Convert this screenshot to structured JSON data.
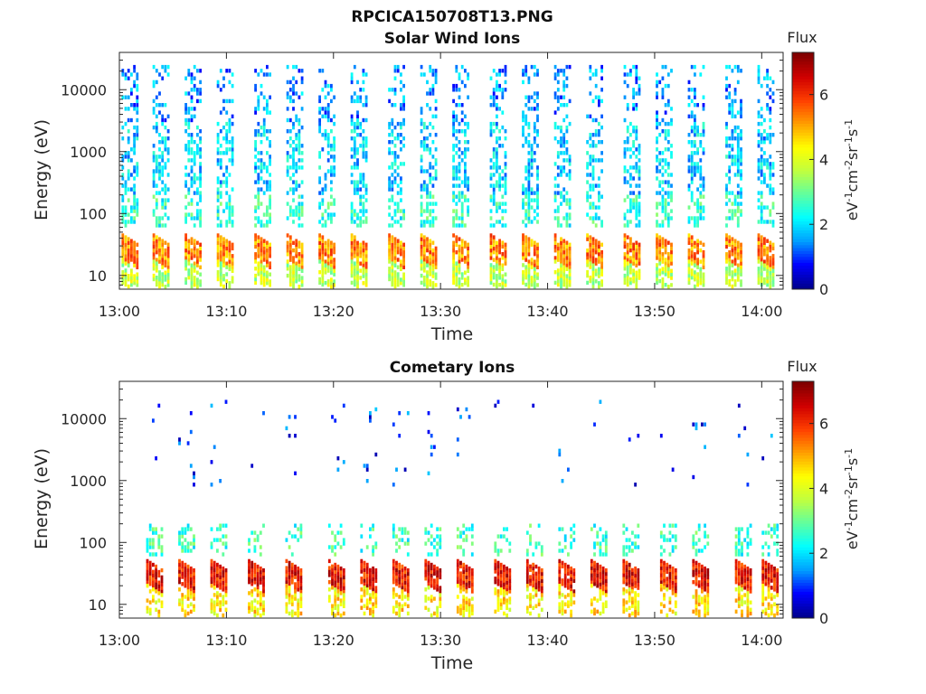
{
  "figure": {
    "title": "RPCICA150708T13.PNG"
  },
  "colorbar": {
    "label_parts": [
      "eV",
      "-1",
      "cm",
      "-2",
      "sr",
      "-1",
      "s",
      "-1"
    ],
    "colors": [
      "#00008f",
      "#0000ff",
      "#00a0ff",
      "#00ffff",
      "#60ff9f",
      "#c0ff3f",
      "#ffff00",
      "#ffa000",
      "#ff4000",
      "#d00000",
      "#800000"
    ]
  },
  "chart_data": [
    {
      "type": "heatmap",
      "title": "Solar Wind Ions",
      "xlabel": "Time",
      "ylabel": "Energy (eV)",
      "y_scale": "log",
      "ylim": [
        6,
        40000
      ],
      "x_range": [
        "13:00",
        "14:02"
      ],
      "x_ticks": [
        "13:00",
        "13:10",
        "13:20",
        "13:30",
        "13:40",
        "13:50",
        "14:00"
      ],
      "y_ticks": [
        "10",
        "100",
        "1000",
        "10000"
      ],
      "colorbar": {
        "title": "Flux",
        "ticks": [
          "0",
          "2",
          "4",
          "6"
        ],
        "range": [
          0,
          7.3
        ]
      },
      "sweep_start_minutes": [
        0.2,
        3.1,
        6.1,
        9.1,
        12.6,
        15.6,
        18.6,
        21.6,
        25.1,
        28.1,
        31.1,
        34.6,
        37.6,
        40.6,
        43.6,
        47.1,
        50.1,
        53.1,
        56.6,
        59.6
      ],
      "bands": [
        {
          "emin": 3000,
          "emax": 25000,
          "flux": 1.5,
          "occupancy": 0.3
        },
        {
          "emin": 200,
          "emax": 3000,
          "flux": 1.9,
          "occupancy": 0.45
        },
        {
          "emin": 60,
          "emax": 200,
          "flux": 2.5,
          "occupancy": 0.5
        },
        {
          "emin": 15,
          "emax": 40,
          "flux": 5.3,
          "occupancy": 0.9
        },
        {
          "emin": 6,
          "emax": 15,
          "flux": 3.7,
          "occupancy": 0.75
        }
      ]
    },
    {
      "type": "heatmap",
      "title": "Cometary Ions",
      "xlabel": "Time",
      "ylabel": "Energy (eV)",
      "y_scale": "log",
      "ylim": [
        6,
        40000
      ],
      "x_range": [
        "13:00",
        "14:02"
      ],
      "x_ticks": [
        "13:00",
        "13:10",
        "13:20",
        "13:30",
        "13:40",
        "13:50",
        "14:00"
      ],
      "y_ticks": [
        "10",
        "100",
        "1000",
        "10000"
      ],
      "colorbar": {
        "title": "Flux",
        "ticks": [
          "0",
          "2",
          "4",
          "6"
        ],
        "range": [
          0,
          7.3
        ]
      },
      "sweep_start_minutes": [
        2.5,
        5.5,
        8.5,
        12.0,
        15.5,
        19.5,
        22.5,
        25.5,
        28.5,
        31.5,
        35.0,
        38.0,
        41.0,
        44.0,
        47.0,
        50.5,
        53.5,
        57.5,
        60.0
      ],
      "bands": [
        {
          "emin": 800,
          "emax": 20000,
          "flux": 1.0,
          "occupancy": 0.03
        },
        {
          "emin": 60,
          "emax": 200,
          "flux": 2.6,
          "occupancy": 0.35
        },
        {
          "emin": 18,
          "emax": 45,
          "flux": 6.3,
          "occupancy": 0.95
        },
        {
          "emin": 6,
          "emax": 18,
          "flux": 4.5,
          "occupancy": 0.6
        }
      ]
    }
  ]
}
